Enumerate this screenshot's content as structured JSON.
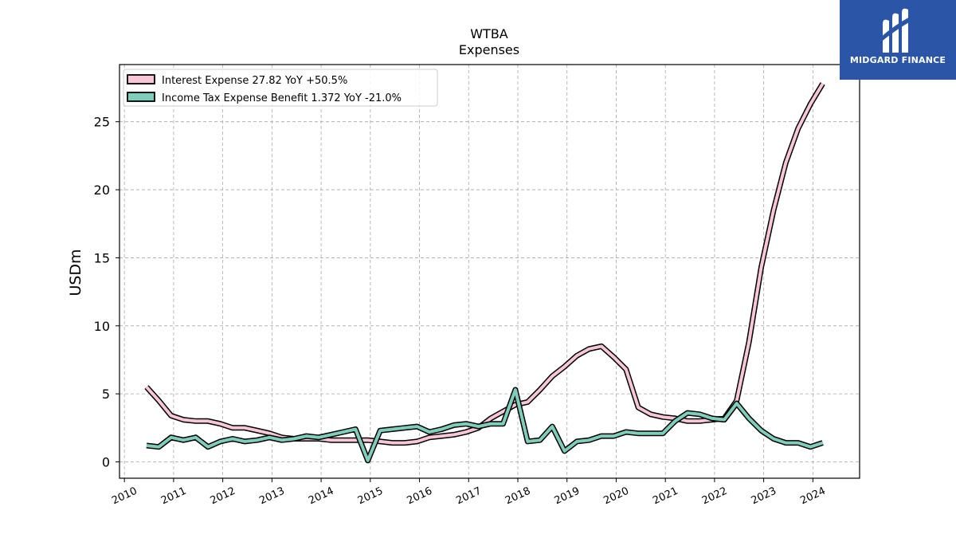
{
  "chart_data": {
    "type": "line",
    "title": "WTBA",
    "subtitle": "Expenses",
    "xlabel": "",
    "ylabel": "USDm",
    "xlim": [
      2009.9,
      2024.95
    ],
    "ylim": [
      -1.2,
      29.2
    ],
    "yticks": [
      0,
      5,
      10,
      15,
      20,
      25
    ],
    "xticks": [
      "2010",
      "2011",
      "2012",
      "2013",
      "2014",
      "2015",
      "2016",
      "2017",
      "2018",
      "2019",
      "2020",
      "2021",
      "2022",
      "2023",
      "2024"
    ],
    "grid": true,
    "legend_position": "top-left",
    "series": [
      {
        "name": "Interest Expense  27.82 YoY +50.5%",
        "color": "#f7c6d9",
        "x": [
          2010.45,
          2010.7,
          2010.95,
          2011.2,
          2011.45,
          2011.7,
          2011.95,
          2012.2,
          2012.45,
          2012.7,
          2012.95,
          2013.2,
          2013.45,
          2013.7,
          2013.95,
          2014.2,
          2014.45,
          2014.7,
          2014.95,
          2015.2,
          2015.45,
          2015.7,
          2015.95,
          2016.2,
          2016.45,
          2016.7,
          2016.95,
          2017.2,
          2017.45,
          2017.7,
          2017.95,
          2018.2,
          2018.45,
          2018.7,
          2018.95,
          2019.2,
          2019.45,
          2019.7,
          2019.95,
          2020.2,
          2020.45,
          2020.7,
          2020.95,
          2021.2,
          2021.45,
          2021.7,
          2021.95,
          2022.2,
          2022.45,
          2022.7,
          2022.95,
          2023.2,
          2023.45,
          2023.7,
          2023.95,
          2024.2
        ],
        "y": [
          5.5,
          4.5,
          3.4,
          3.1,
          3.0,
          3.0,
          2.8,
          2.5,
          2.5,
          2.3,
          2.1,
          1.8,
          1.7,
          1.7,
          1.7,
          1.6,
          1.6,
          1.6,
          1.6,
          1.5,
          1.4,
          1.4,
          1.5,
          1.8,
          1.9,
          2.0,
          2.2,
          2.5,
          3.2,
          3.7,
          4.2,
          4.4,
          5.3,
          6.3,
          7.0,
          7.8,
          8.3,
          8.5,
          7.7,
          6.8,
          4.0,
          3.5,
          3.3,
          3.2,
          3.0,
          3.0,
          3.1,
          3.2,
          4.5,
          8.8,
          14.3,
          18.5,
          22.0,
          24.5,
          26.3,
          27.8
        ]
      },
      {
        "name": "Income Tax Expense Benefit  1.372 YoY -21.0%",
        "color": "#7fcdbb",
        "x": [
          2010.45,
          2010.7,
          2010.95,
          2011.2,
          2011.45,
          2011.7,
          2011.95,
          2012.2,
          2012.45,
          2012.7,
          2012.95,
          2013.2,
          2013.45,
          2013.7,
          2013.95,
          2014.2,
          2014.45,
          2014.7,
          2014.95,
          2015.2,
          2015.45,
          2015.7,
          2015.95,
          2016.2,
          2016.45,
          2016.7,
          2016.95,
          2017.2,
          2017.45,
          2017.7,
          2017.95,
          2018.2,
          2018.45,
          2018.7,
          2018.95,
          2019.2,
          2019.45,
          2019.7,
          2019.95,
          2020.2,
          2020.45,
          2020.7,
          2020.95,
          2021.2,
          2021.45,
          2021.7,
          2021.95,
          2022.2,
          2022.45,
          2022.7,
          2022.95,
          2023.2,
          2023.45,
          2023.7,
          2023.95,
          2024.2
        ],
        "y": [
          1.2,
          1.1,
          1.8,
          1.6,
          1.8,
          1.1,
          1.5,
          1.7,
          1.5,
          1.6,
          1.8,
          1.6,
          1.7,
          1.9,
          1.8,
          2.0,
          2.2,
          2.4,
          0.1,
          2.3,
          2.4,
          2.5,
          2.6,
          2.2,
          2.4,
          2.7,
          2.8,
          2.6,
          2.8,
          2.8,
          5.3,
          1.5,
          1.6,
          2.6,
          0.8,
          1.5,
          1.6,
          1.9,
          1.9,
          2.2,
          2.1,
          2.1,
          2.1,
          3.0,
          3.6,
          3.5,
          3.2,
          3.1,
          4.3,
          3.2,
          2.3,
          1.7,
          1.4,
          1.4,
          1.1,
          1.4
        ]
      }
    ]
  },
  "brand": {
    "name": "MIDGARD FINANCE",
    "logo_icon": "midgard-m-icon",
    "background": "#2b55a6"
  }
}
